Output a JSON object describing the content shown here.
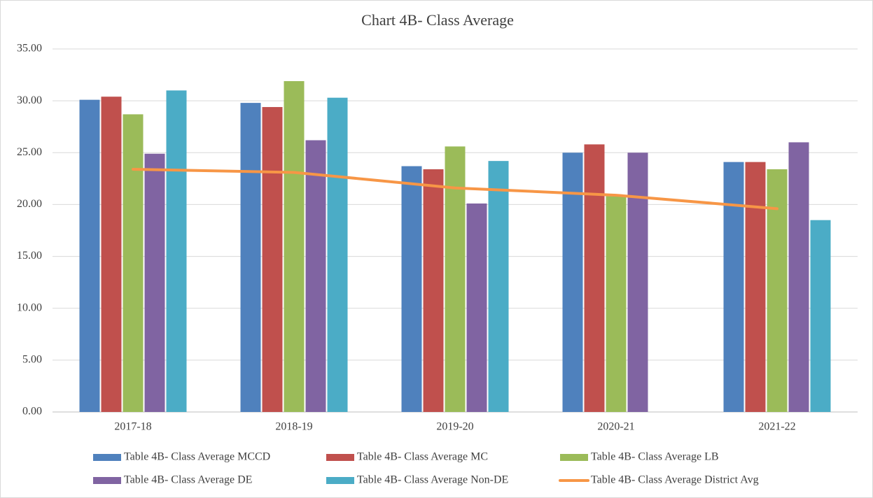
{
  "chart_data": {
    "type": "bar",
    "title": "Chart 4B- Class Average",
    "categories": [
      "2017-18",
      "2018-19",
      "2019-20",
      "2020-21",
      "2021-22"
    ],
    "series": [
      {
        "name": "Table 4B- Class Average MCCD",
        "color": "#4f81bd",
        "values": [
          30.1,
          29.8,
          23.7,
          25.0,
          24.1
        ]
      },
      {
        "name": "Table 4B- Class Average MC",
        "color": "#c0504d",
        "values": [
          30.4,
          29.4,
          23.4,
          25.8,
          24.1
        ]
      },
      {
        "name": "Table 4B- Class Average LB",
        "color": "#9bbb59",
        "values": [
          28.7,
          31.9,
          25.6,
          20.8,
          23.4
        ]
      },
      {
        "name": "Table 4B- Class Average DE",
        "color": "#8064a2",
        "values": [
          24.9,
          26.2,
          20.1,
          25.0,
          26.0
        ]
      },
      {
        "name": "Table 4B- Class Average Non-DE",
        "color": "#4bacc6",
        "values": [
          31.0,
          30.3,
          24.2,
          null,
          18.5
        ]
      },
      {
        "name": "Table 4B- Class Average District Avg",
        "color": "#f79646",
        "type": "line",
        "values": [
          23.4,
          23.1,
          21.6,
          20.9,
          19.6
        ]
      }
    ],
    "ylim": [
      0,
      35
    ],
    "yticks": [
      {
        "value": 0,
        "label": "0.00"
      },
      {
        "value": 5,
        "label": "5.00"
      },
      {
        "value": 10,
        "label": "10.00"
      },
      {
        "value": 15,
        "label": "15.00"
      },
      {
        "value": 20,
        "label": "20.00"
      },
      {
        "value": 25,
        "label": "25.00"
      },
      {
        "value": 30,
        "label": "30.00"
      },
      {
        "value": 35,
        "label": "35.00"
      }
    ],
    "grid": true,
    "legend": "bottom"
  }
}
